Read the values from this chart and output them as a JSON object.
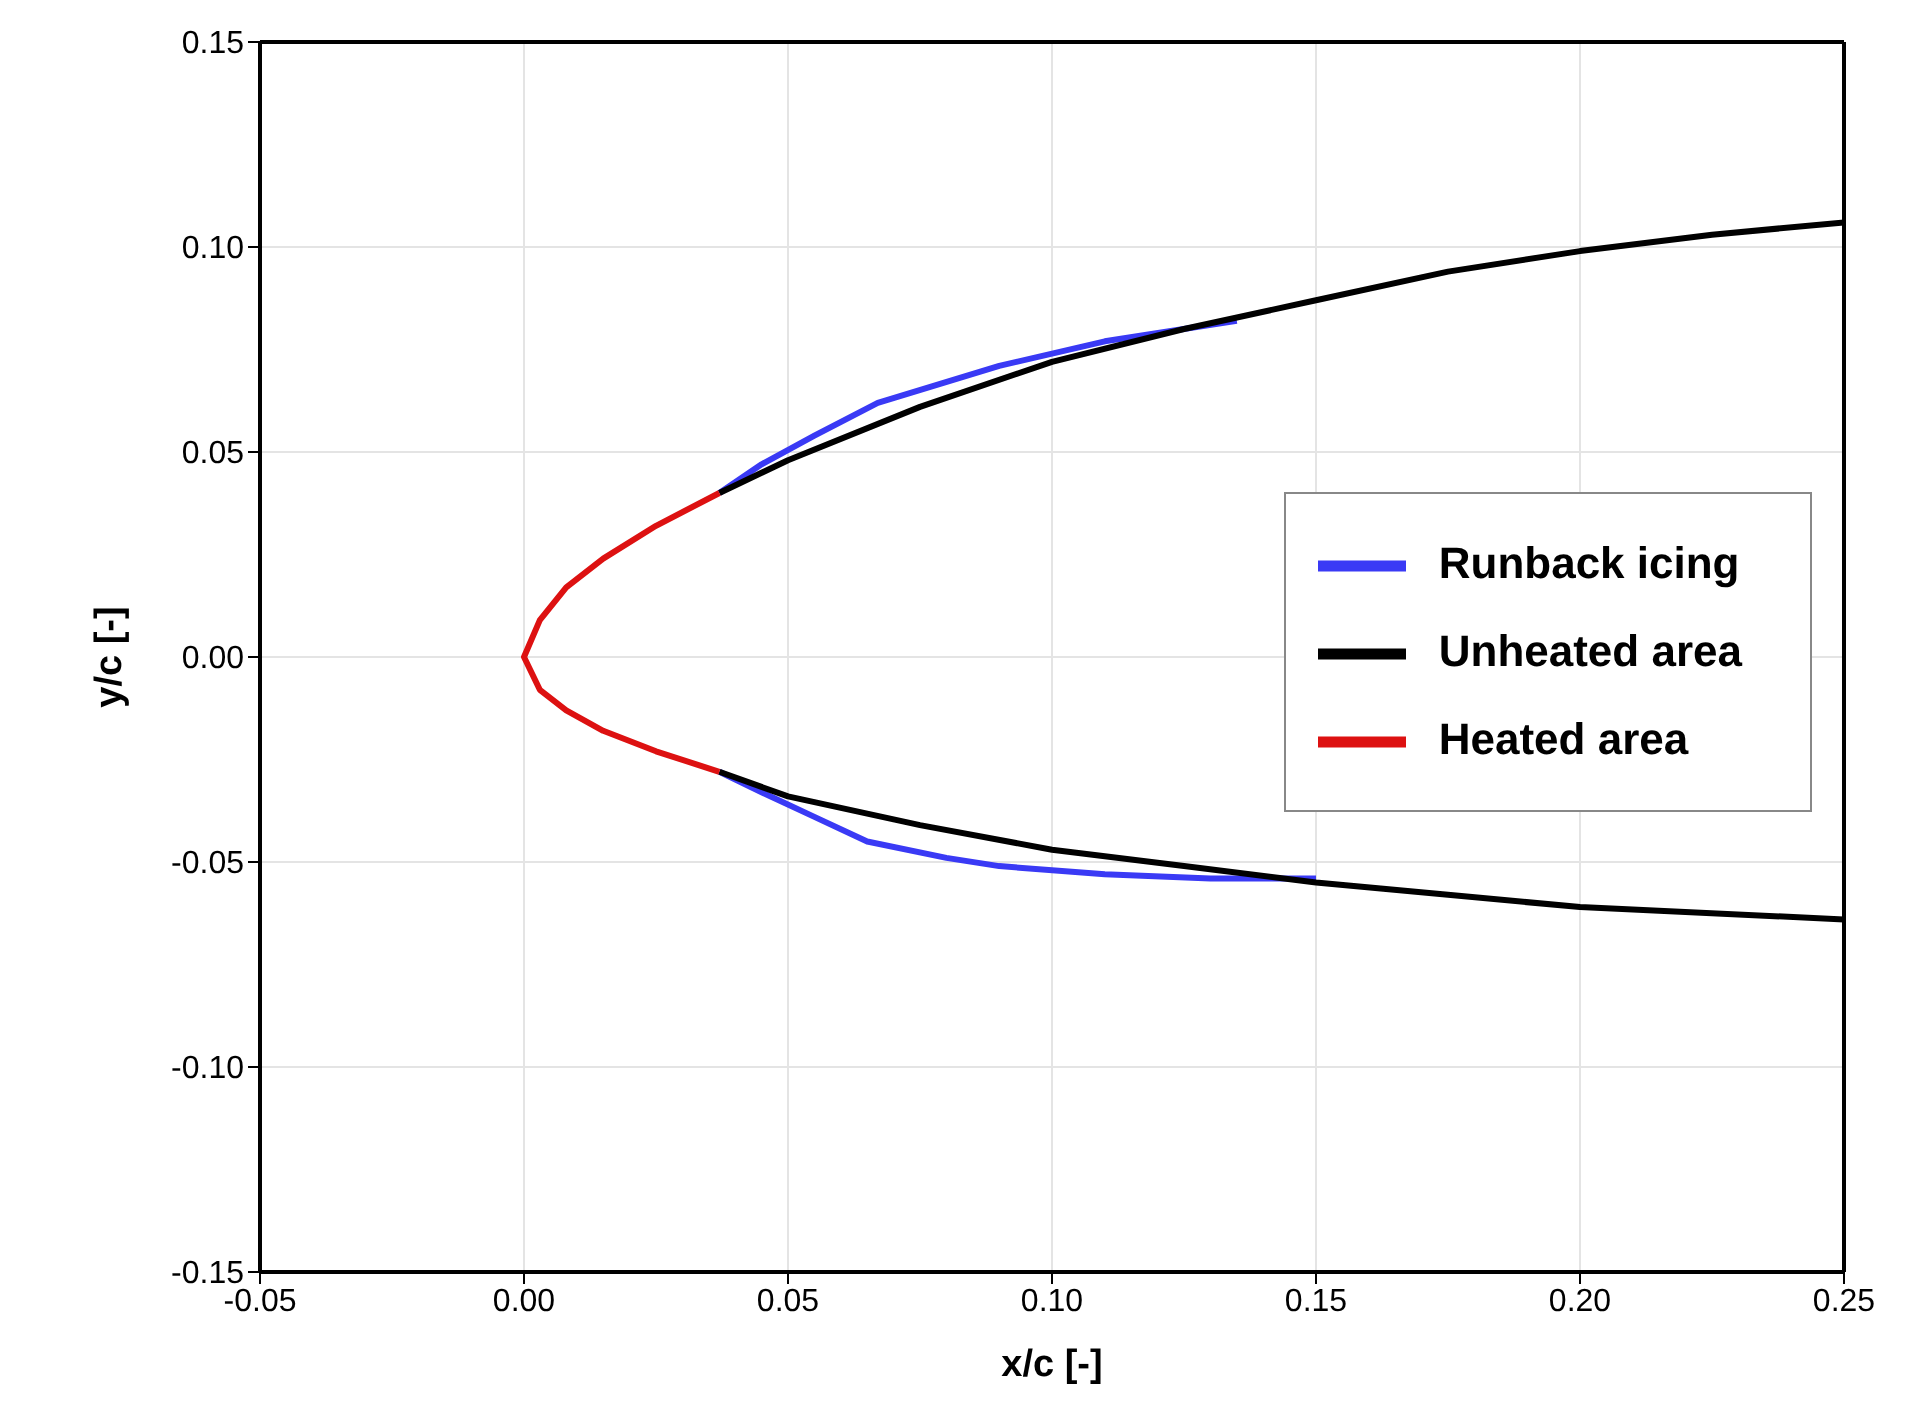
{
  "chart_data": {
    "type": "line",
    "xlabel": "x/c [-]",
    "ylabel": "y/c [-]",
    "xlim": [
      -0.05,
      0.25
    ],
    "xticks": [
      {
        "value": -0.05,
        "label": "-0.05"
      },
      {
        "value": 0,
        "label": "0.00"
      },
      {
        "value": 0.05,
        "label": "0.05"
      },
      {
        "value": 0.1,
        "label": "0.10"
      },
      {
        "value": 0.15,
        "label": "0.15"
      },
      {
        "value": 0.2,
        "label": "0.20"
      },
      {
        "value": 0.25,
        "label": "0.25"
      }
    ],
    "ylim": [
      -0.15,
      0.15
    ],
    "yticks": [
      {
        "value": -0.15,
        "label": "-0.15"
      },
      {
        "value": -0.1,
        "label": "-0.10"
      },
      {
        "value": -0.05,
        "label": "-0.05"
      },
      {
        "value": 0,
        "label": "0.00"
      },
      {
        "value": 0.05,
        "label": "0.05"
      },
      {
        "value": 0.1,
        "label": "0.10"
      },
      {
        "value": 0.15,
        "label": "0.15"
      }
    ],
    "grid": true,
    "legend": "right",
    "marker": "none",
    "line_style": "solid",
    "series": [
      {
        "name": "Runback icing",
        "color": "#3a3af5",
        "x": [
          0.037,
          0.045,
          0.055,
          0.067,
          0.09,
          0.11,
          0.135,
          null,
          0.037,
          0.045,
          0.055,
          0.065,
          0.08,
          0.09,
          0.11,
          0.13,
          0.15
        ],
        "values": [
          0.04,
          0.047,
          0.054,
          0.062,
          0.071,
          0.077,
          0.082,
          null,
          -0.028,
          -0.033,
          -0.039,
          -0.045,
          -0.049,
          -0.051,
          -0.053,
          -0.054,
          -0.054
        ]
      },
      {
        "name": "Unheated area",
        "color": "#000000",
        "x": [
          0.037,
          0.05,
          0.075,
          0.1,
          0.125,
          0.15,
          0.175,
          0.2,
          0.225,
          0.25,
          null,
          0.037,
          0.05,
          0.075,
          0.1,
          0.125,
          0.15,
          0.175,
          0.2,
          0.25
        ],
        "values": [
          0.04,
          0.048,
          0.061,
          0.072,
          0.08,
          0.087,
          0.094,
          0.099,
          0.103,
          0.106,
          null,
          -0.028,
          -0.034,
          -0.041,
          -0.047,
          -0.051,
          -0.055,
          -0.058,
          -0.061,
          -0.064
        ]
      },
      {
        "name": "Heated area",
        "color": "#dd1111",
        "x": [
          0.037,
          0.025,
          0.015,
          0.008,
          0.003,
          0,
          0.003,
          0.008,
          0.015,
          0.025,
          0.037
        ],
        "values": [
          0.04,
          0.032,
          0.024,
          0.017,
          0.009,
          0,
          -0.008,
          -0.013,
          -0.018,
          -0.023,
          -0.028
        ]
      }
    ]
  }
}
